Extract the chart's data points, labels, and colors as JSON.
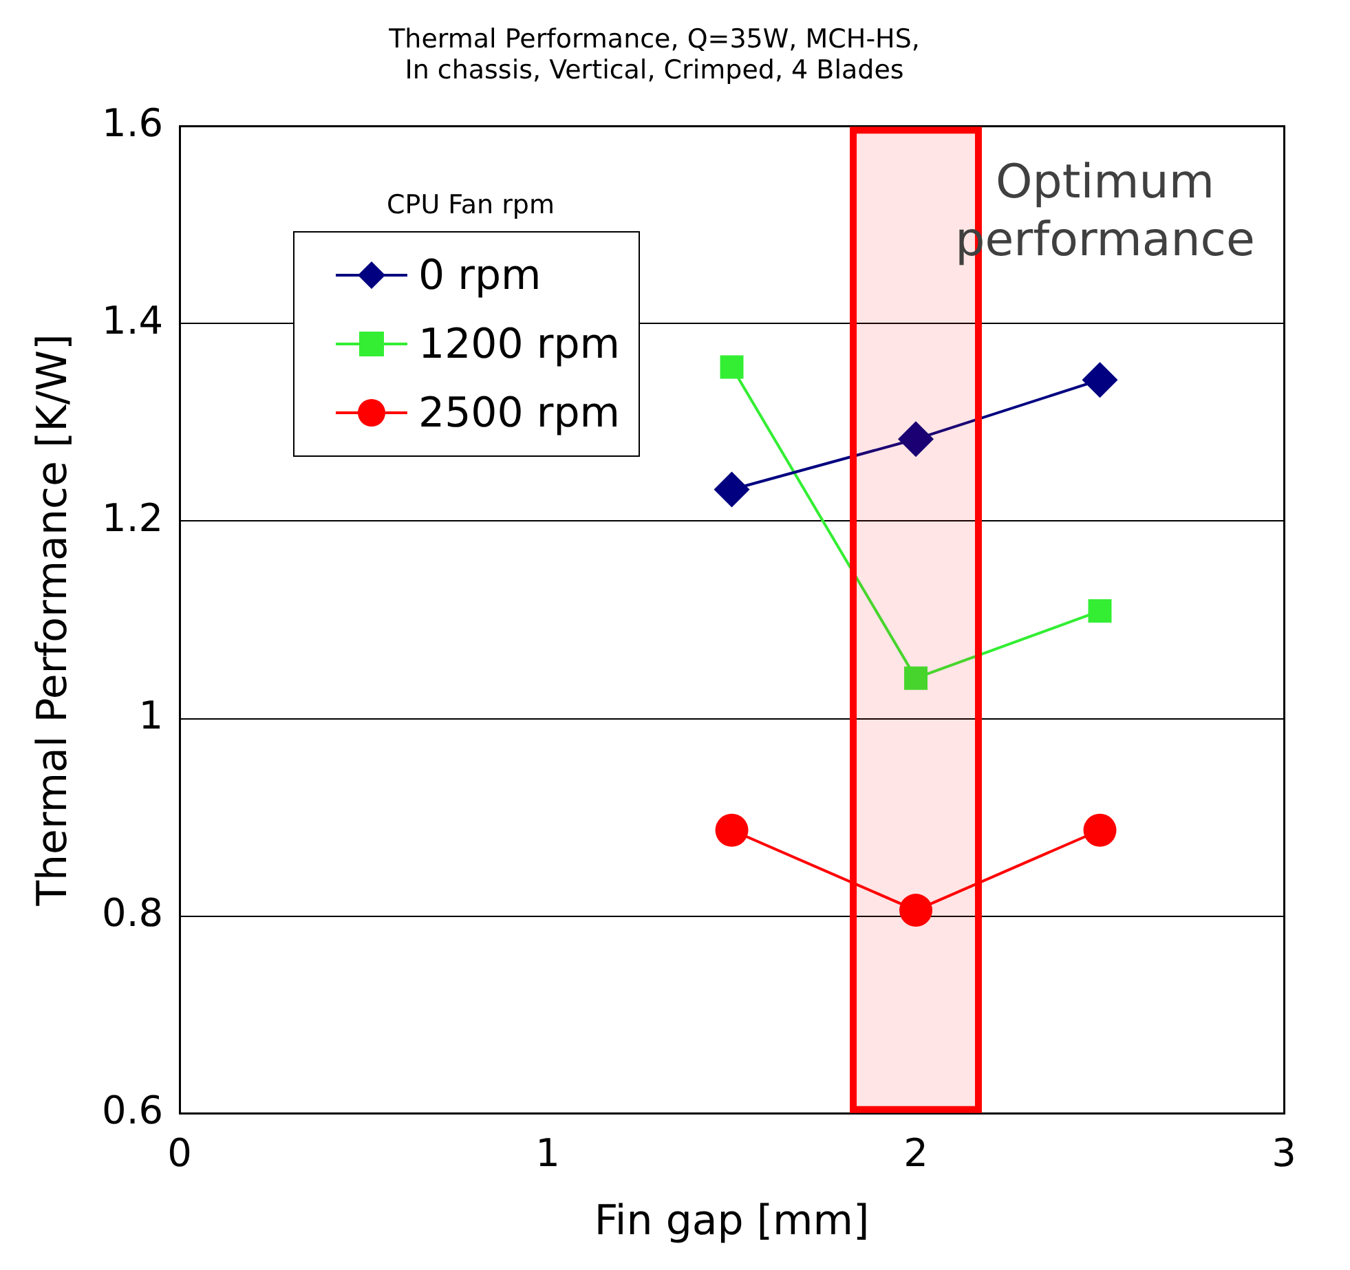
{
  "chart_data": {
    "type": "line",
    "title": "Thermal Performance, Q=35W, MCH-HS,\nIn chassis, Vertical, Crimped, 4 Blades",
    "xlabel": "Fin gap [mm]",
    "ylabel": "Thermal Performance [K/W]",
    "legend_title": "CPU Fan rpm",
    "x": [
      1.5,
      2,
      2.5
    ],
    "series": [
      {
        "name": "0 rpm",
        "color": "#000080",
        "values": [
          1.232,
          1.283,
          1.343
        ],
        "marker": "diamond"
      },
      {
        "name": "1200 rpm",
        "color": "#33ee33",
        "values": [
          1.356,
          1.041,
          1.109
        ],
        "marker": "square"
      },
      {
        "name": "2500 rpm",
        "color": "#ff0000",
        "values": [
          0.887,
          0.806,
          0.887
        ],
        "marker": "circle"
      }
    ],
    "xlim": [
      0,
      3
    ],
    "xticks": [
      0,
      1,
      2,
      3
    ],
    "ylim": [
      0.6,
      1.6
    ],
    "yticks": [
      0.6,
      0.8,
      1,
      1.2,
      1.4,
      1.6
    ],
    "grid": "y",
    "legend": "top left",
    "line_style": "solid",
    "bands": [
      {
        "axis": "x",
        "from": 1.83,
        "to": 2.17,
        "color": "#ff0000"
      }
    ],
    "annotations": [
      "Optimum performance"
    ]
  }
}
